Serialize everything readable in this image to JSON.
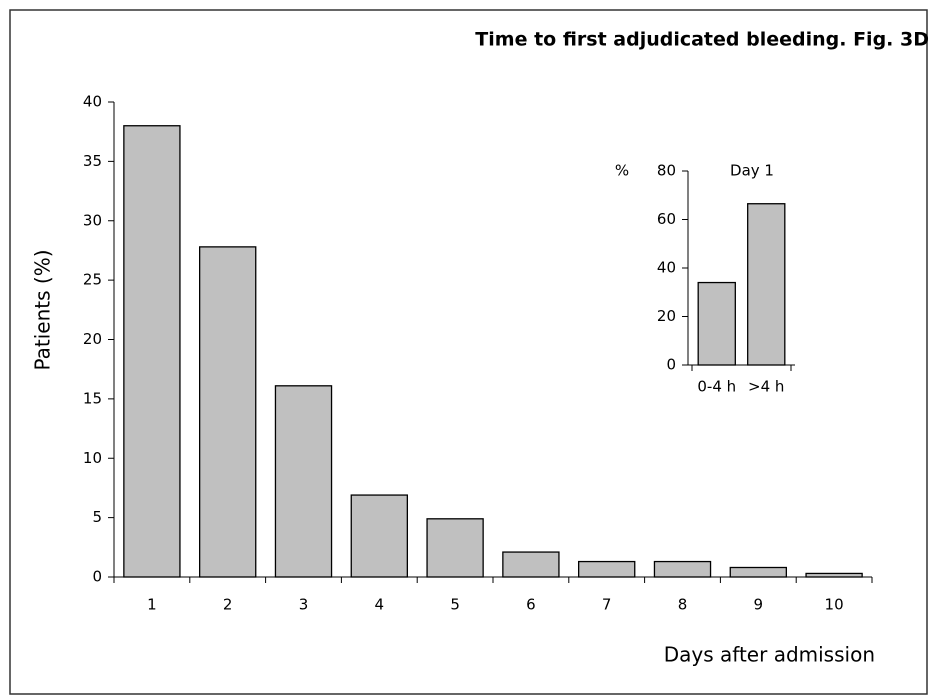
{
  "chart_data": [
    {
      "type": "bar",
      "title": "Time to first adjudicated bleeding. Fig. 3D",
      "y_label": "Patients (%)",
      "x_label": "Days after admission",
      "categories": [
        "1",
        "2",
        "3",
        "4",
        "5",
        "6",
        "7",
        "8",
        "9",
        "10"
      ],
      "values": [
        38,
        27.8,
        16.1,
        6.9,
        4.9,
        2.1,
        1.3,
        1.3,
        0.8,
        0.3
      ],
      "color": "#c0c0c0",
      "ylim": [
        0,
        40
      ],
      "yticks": [
        0,
        5,
        10,
        15,
        20,
        25,
        30,
        35,
        40
      ]
    },
    {
      "type": "bar",
      "title": "Day 1",
      "y_label": "%",
      "categories": [
        "0-4 h",
        ">4 h"
      ],
      "values": [
        34,
        66.5
      ],
      "color": "#c0c0c0",
      "ylim": [
        0,
        80
      ],
      "yticks": [
        0,
        20,
        40,
        60,
        80
      ]
    }
  ]
}
